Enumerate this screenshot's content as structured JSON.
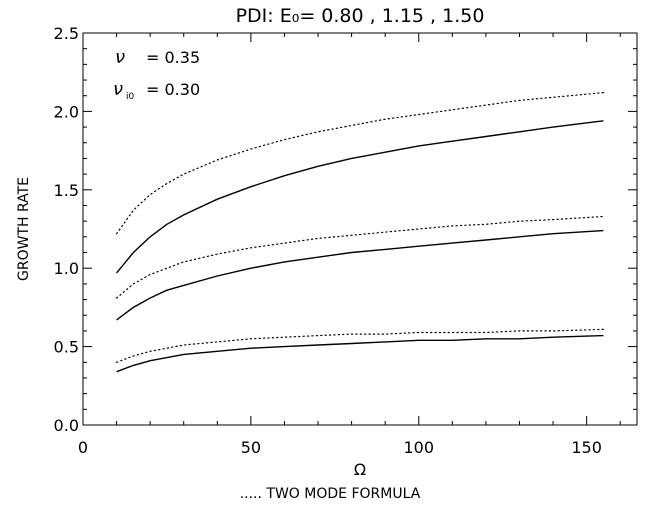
{
  "chart_data": {
    "type": "line",
    "title": "PDI:   E₀=  0.80  ,  1.15  ,  1.50",
    "xlabel": "Ω",
    "ylabel": "GROWTH RATE",
    "caption": "..... TWO MODE FORMULA",
    "annotations": [
      {
        "symbol": "ν",
        "subscript": "",
        "text": "= 0.35"
      },
      {
        "symbol": "ν",
        "subscript": "i0",
        "text": "= 0.30"
      }
    ],
    "xlim": [
      0,
      165
    ],
    "ylim": [
      0,
      2.5
    ],
    "xticks": [
      0,
      50,
      100,
      150
    ],
    "xtick_labels": [
      "0",
      "50",
      "100",
      "150"
    ],
    "yticks": [
      0,
      0.5,
      1.0,
      1.5,
      2.0,
      2.5
    ],
    "ytick_labels": [
      "0.0",
      "0.5",
      "1.0",
      "1.5",
      "2.0",
      "2.5"
    ],
    "grid": false,
    "x": [
      10,
      15,
      20,
      25,
      30,
      40,
      50,
      60,
      70,
      80,
      90,
      100,
      110,
      120,
      130,
      140,
      155
    ],
    "series": [
      {
        "style": "dotted",
        "values": [
          0.4,
          0.44,
          0.47,
          0.49,
          0.51,
          0.53,
          0.55,
          0.56,
          0.57,
          0.58,
          0.58,
          0.59,
          0.59,
          0.59,
          0.6,
          0.6,
          0.61
        ]
      },
      {
        "style": "solid",
        "values": [
          0.34,
          0.38,
          0.41,
          0.43,
          0.45,
          0.47,
          0.49,
          0.5,
          0.51,
          0.52,
          0.53,
          0.54,
          0.54,
          0.55,
          0.55,
          0.56,
          0.57
        ]
      },
      {
        "style": "dotted",
        "values": [
          0.81,
          0.9,
          0.96,
          1.0,
          1.04,
          1.09,
          1.13,
          1.16,
          1.19,
          1.21,
          1.23,
          1.25,
          1.27,
          1.28,
          1.3,
          1.31,
          1.33
        ]
      },
      {
        "style": "solid",
        "values": [
          0.67,
          0.75,
          0.81,
          0.86,
          0.89,
          0.95,
          1.0,
          1.04,
          1.07,
          1.1,
          1.12,
          1.14,
          1.16,
          1.18,
          1.2,
          1.22,
          1.24
        ]
      },
      {
        "style": "dotted",
        "values": [
          1.22,
          1.37,
          1.47,
          1.54,
          1.6,
          1.69,
          1.76,
          1.82,
          1.87,
          1.91,
          1.95,
          1.98,
          2.01,
          2.04,
          2.07,
          2.09,
          2.12
        ]
      },
      {
        "style": "solid",
        "values": [
          0.97,
          1.1,
          1.2,
          1.28,
          1.34,
          1.44,
          1.52,
          1.59,
          1.65,
          1.7,
          1.74,
          1.78,
          1.81,
          1.84,
          1.87,
          1.9,
          1.94
        ]
      }
    ]
  }
}
